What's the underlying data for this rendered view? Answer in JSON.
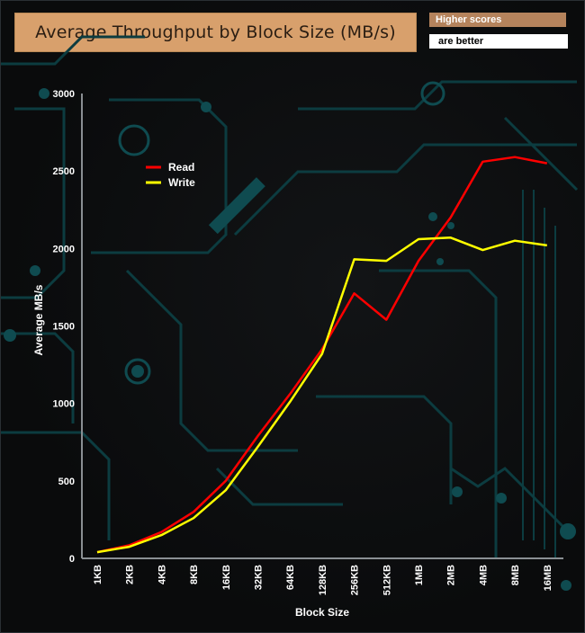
{
  "chart_data": {
    "type": "line",
    "title": "Average Throughput by Block Size (MB/s)",
    "notes": [
      "Higher scores",
      "are better"
    ],
    "xlabel": "Block Size",
    "ylabel": "Average MB/s",
    "categories": [
      "1KB",
      "2KB",
      "4KB",
      "8KB",
      "16KB",
      "32KB",
      "64KB",
      "128KB",
      "256KB",
      "512KB",
      "1MB",
      "2MB",
      "4MB",
      "8MB",
      "16MB"
    ],
    "ylim": [
      0,
      3000
    ],
    "yticks": [
      0,
      500,
      1000,
      1500,
      2000,
      2500,
      3000
    ],
    "grid": false,
    "legend_position": "top-left",
    "series": [
      {
        "name": "Read",
        "color": "#ff0000",
        "values": [
          40,
          85,
          170,
          300,
          500,
          790,
          1060,
          1350,
          1710,
          1540,
          1920,
          2200,
          2560,
          2590,
          2550
        ]
      },
      {
        "name": "Write",
        "color": "#ffff00",
        "values": [
          40,
          75,
          150,
          260,
          440,
          720,
          1010,
          1320,
          1930,
          1920,
          2060,
          2070,
          1990,
          2050,
          2020
        ]
      }
    ]
  }
}
